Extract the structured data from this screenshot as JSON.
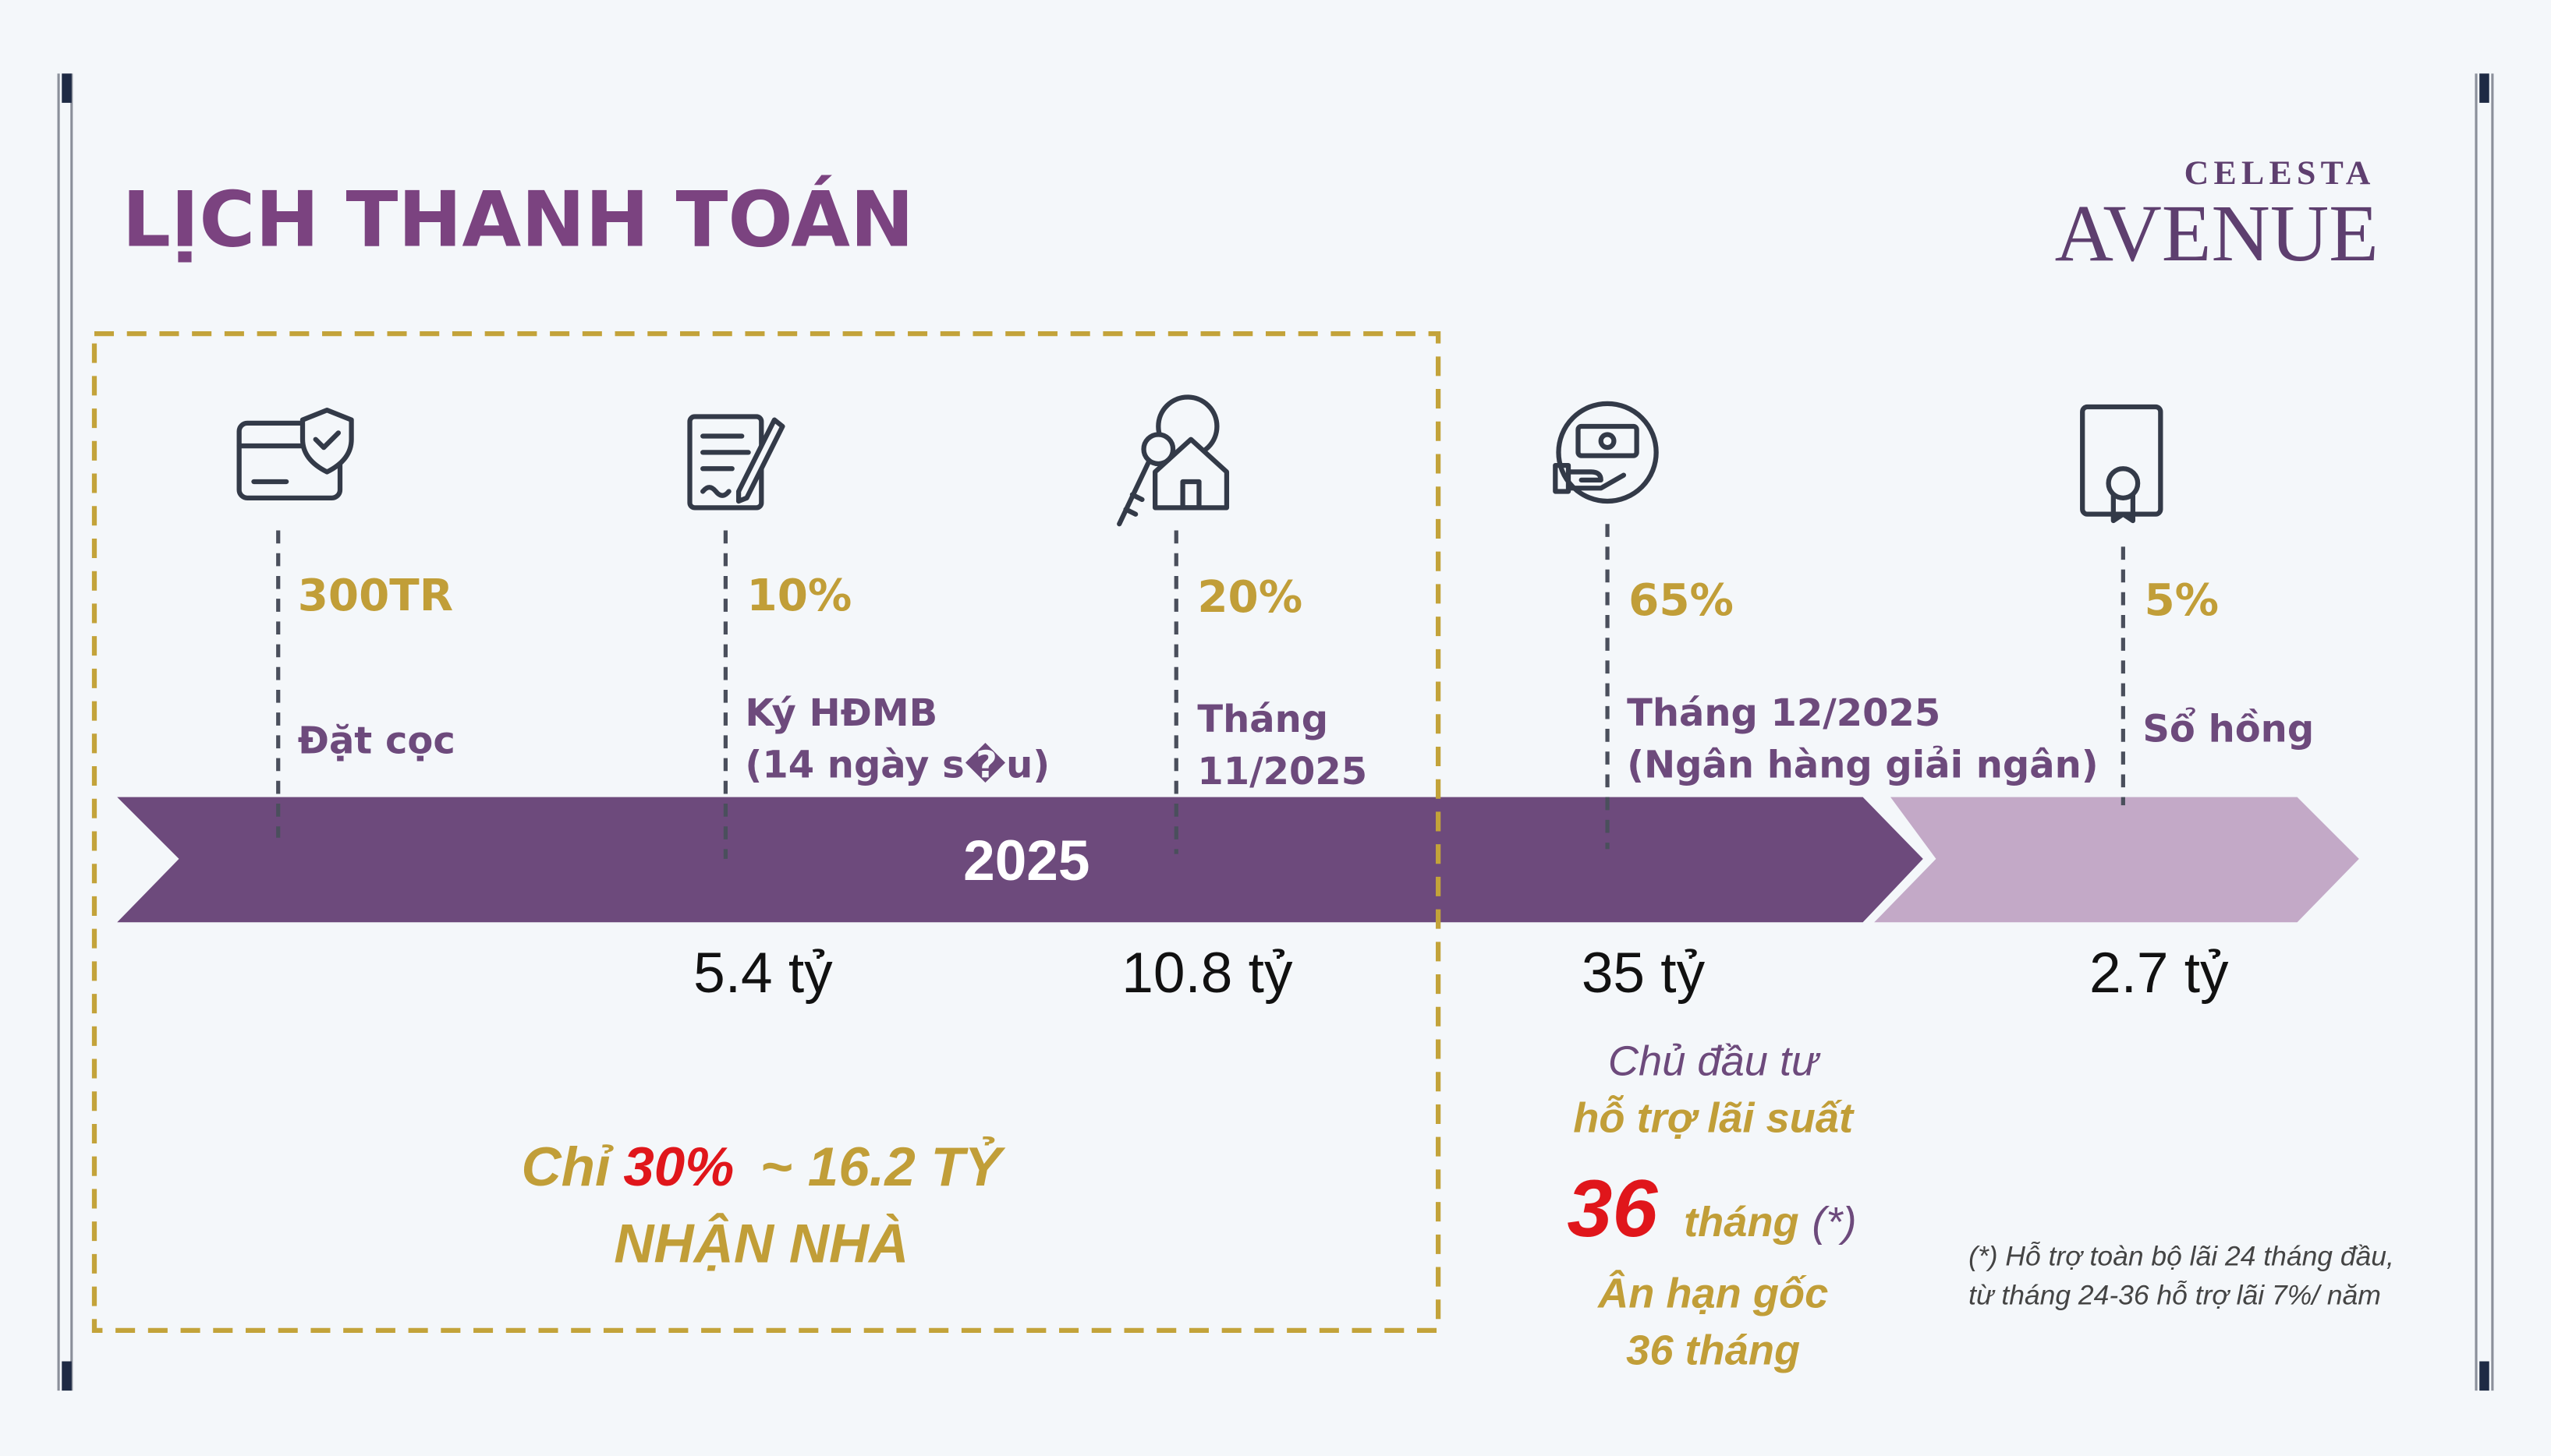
{
  "header": {
    "title": "LỊCH THANH TOÁN",
    "logo_top": "CELESTA",
    "logo_bottom": "AVENUE"
  },
  "timeline": {
    "year": "2025",
    "steps": [
      {
        "amount": "300TR",
        "label": [
          "Đặt cọc"
        ]
      },
      {
        "amount": "10%",
        "label": [
          "Ký HĐMB",
          "(14 ngày s�u)"
        ],
        "total": "5.4 tỷ"
      },
      {
        "amount": "20%",
        "label": [
          "Tháng",
          "11/2025"
        ],
        "total": "10.8 tỷ"
      },
      {
        "amount": "65%",
        "label": [
          "Tháng 12/2025",
          "(Ngân hàng giải ngân)"
        ],
        "total": "35 tỷ"
      },
      {
        "amount": "5%",
        "label": [
          "Sổ hồng"
        ],
        "total": "2.7 tỷ"
      }
    ]
  },
  "highlight": {
    "prefix": "Chỉ",
    "percent": "30%",
    "suffix": "~ 16.2 TỶ",
    "line2": "NHẬN NHÀ"
  },
  "support": {
    "line1": "Chủ đầu tư",
    "line2": "hỗ trợ lãi suất",
    "number": "36",
    "unit": "tháng",
    "mark": "(*)",
    "line4": "Ân hạn gốc",
    "line5": "36 tháng"
  },
  "footnote": [
    "(*) Hỗ trợ toàn bộ lãi 24 tháng đầu,",
    "từ tháng 24-36 hỗ trợ lãi 7%/ năm"
  ]
}
